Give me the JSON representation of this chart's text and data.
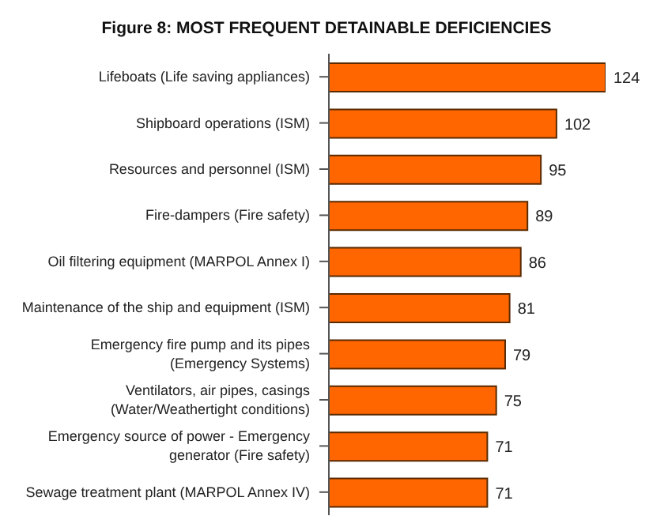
{
  "chart_data": {
    "type": "bar",
    "orientation": "horizontal",
    "title": "Figure 8: MOST FREQUENT DETAINABLE DEFICIENCIES",
    "categories": [
      "Lifeboats (Life saving appliances)",
      "Shipboard operations (ISM)",
      "Resources and personnel (ISM)",
      "Fire-dampers (Fire safety)",
      "Oil filtering equipment (MARPOL Annex I)",
      "Maintenance of the ship and equipment (ISM)",
      "Emergency fire pump and its pipes (Emergency Systems)",
      "Ventilators, air pipes, casings (Water/Weathertight conditions)",
      "Emergency source of power - Emergency generator (Fire safety)",
      "Sewage treatment plant (MARPOL Annex IV)"
    ],
    "values": [
      124,
      102,
      95,
      89,
      86,
      81,
      79,
      75,
      71,
      71
    ],
    "color": "#ff6600",
    "data_labels": true
  }
}
